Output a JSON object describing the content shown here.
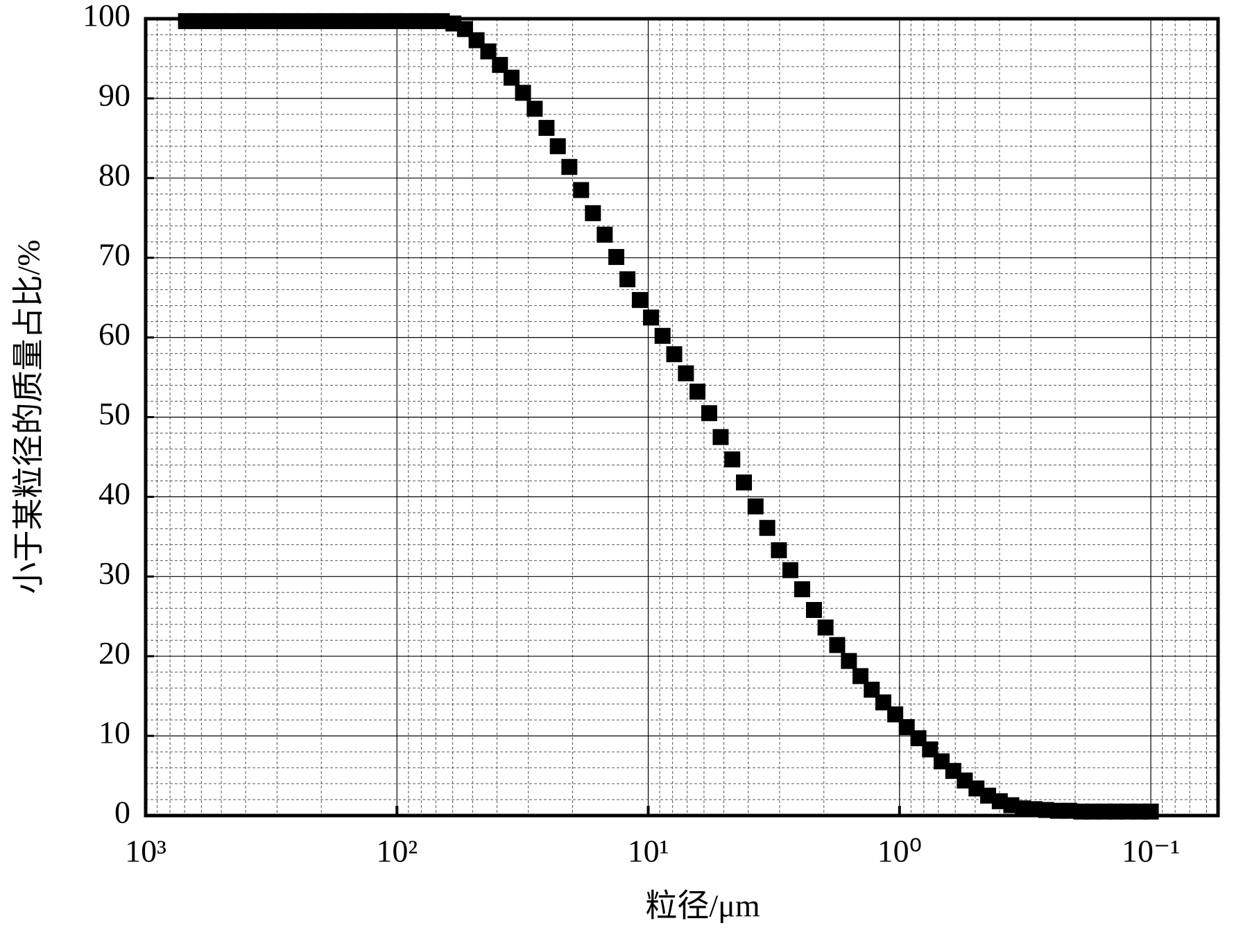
{
  "chart_data": {
    "type": "scatter",
    "x_label": "粒径/μm",
    "y_label": "小于某粒径的质量占比/%",
    "x": [
      691,
      621,
      558,
      502,
      451,
      406,
      365,
      328,
      295,
      265,
      238,
      214,
      193,
      173,
      156,
      140,
      126,
      113,
      102,
      91.3,
      82.1,
      73.8,
      66.3,
      59.6,
      53.6,
      48.2,
      43.3,
      38.9,
      35.0,
      31.5,
      28.3,
      25.4,
      22.9,
      20.6,
      18.5,
      16.6,
      14.9,
      13.4,
      12.1,
      10.8,
      9.75,
      8.77,
      7.88,
      7.08,
      6.37,
      5.72,
      5.15,
      4.63,
      4.16,
      3.74,
      3.36,
      3.02,
      2.72,
      2.44,
      2.19,
      1.97,
      1.77,
      1.59,
      1.43,
      1.29,
      1.16,
      1.04,
      0.936,
      0.841,
      0.756,
      0.68,
      0.611,
      0.55,
      0.494,
      0.444,
      0.399,
      0.359,
      0.323,
      0.29,
      0.261,
      0.234,
      0.211,
      0.189,
      0.17,
      0.153,
      0.138,
      0.124,
      0.111,
      0.1
    ],
    "values": [
      99.7,
      99.7,
      99.7,
      99.7,
      99.7,
      99.7,
      99.7,
      99.7,
      99.7,
      99.7,
      99.7,
      99.7,
      99.7,
      99.7,
      99.7,
      99.7,
      99.7,
      99.7,
      99.7,
      99.7,
      99.7,
      99.7,
      99.7,
      99.4,
      98.7,
      97.3,
      95.9,
      94.2,
      92.6,
      90.7,
      88.7,
      86.3,
      84.0,
      81.4,
      78.5,
      75.6,
      72.9,
      70.1,
      67.3,
      64.7,
      62.5,
      60.2,
      57.9,
      55.5,
      53.2,
      50.5,
      47.5,
      44.7,
      41.8,
      38.8,
      36.1,
      33.3,
      30.8,
      28.4,
      25.8,
      23.6,
      21.4,
      19.4,
      17.5,
      15.8,
      14.2,
      12.7,
      11.1,
      9.7,
      8.3,
      6.8,
      5.6,
      4.4,
      3.4,
      2.5,
      1.8,
      1.3,
      0.9,
      0.8,
      0.7,
      0.6,
      0.6,
      0.5,
      0.5,
      0.5,
      0.5,
      0.5,
      0.5,
      0.5
    ],
    "color": "#000000",
    "marker": "square",
    "xscale": "log",
    "xlim": [
      1000,
      0.054
    ],
    "xticks": [
      {
        "value": 1000,
        "label": "10³"
      },
      {
        "value": 100,
        "label": "10²"
      },
      {
        "value": 10,
        "label": "10¹"
      },
      {
        "value": 1,
        "label": "10⁰"
      },
      {
        "value": 0.1,
        "label": "10⁻¹"
      }
    ],
    "ylim": [
      0,
      100
    ],
    "yticks": [
      0,
      10,
      20,
      30,
      40,
      50,
      60,
      70,
      80,
      90,
      100
    ],
    "grid": true,
    "minor_grid": true
  }
}
